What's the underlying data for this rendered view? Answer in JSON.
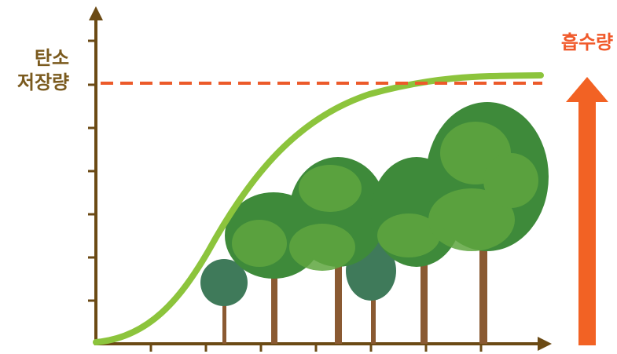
{
  "y_axis_label": {
    "line1": "탄소",
    "line2": "저장량"
  },
  "absorption_label": "흡수량"
}
